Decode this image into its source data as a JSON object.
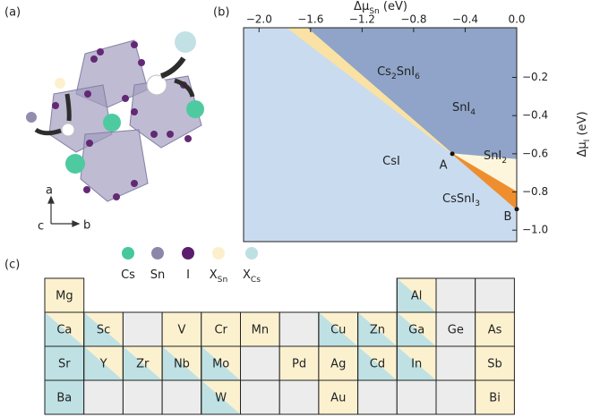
{
  "panel_labels": [
    "(a)",
    "(b)",
    "(c)"
  ],
  "structure": {
    "axes": [
      "a",
      "b",
      "c"
    ],
    "legend": [
      {
        "name": [
          {
            "text": "Cs"
          }
        ],
        "color": "#45c89b"
      },
      {
        "name": [
          {
            "text": "Sn"
          }
        ],
        "color": "#8b87a9"
      },
      {
        "name": [
          {
            "text": "I"
          }
        ],
        "color": "#5b1e6e"
      },
      {
        "name": [
          {
            "text": "X"
          },
          {
            "text": "Sn",
            "sub": true
          }
        ],
        "color": "#fcf0cc"
      },
      {
        "name": [
          {
            "text": "X"
          },
          {
            "text": "Cs",
            "sub": true
          }
        ],
        "color": "#bde0e3"
      }
    ]
  },
  "chart_data": {
    "type": "phase-diagram",
    "xlabel": [
      {
        "text": "Δμ"
      },
      {
        "text": "Sn",
        "sub": true
      },
      {
        "text": " (eV)"
      }
    ],
    "ylabel": [
      {
        "text": "Δμ"
      },
      {
        "text": "I",
        "sub": true
      },
      {
        "text": " (eV)"
      }
    ],
    "xlim": [
      -2.12,
      0
    ],
    "ylim": [
      -1.06,
      0.06
    ],
    "xticks": [
      {
        "value": -2.0,
        "label": "−2.0"
      },
      {
        "value": -1.6,
        "label": "−1.6"
      },
      {
        "value": -1.2,
        "label": "−1.2"
      },
      {
        "value": -0.8,
        "label": "−0.8"
      },
      {
        "value": -0.4,
        "label": "−0.4"
      },
      {
        "value": 0,
        "label": "0.0"
      }
    ],
    "yticks": [
      {
        "value": -0.2,
        "label": "−0.2"
      },
      {
        "value": -0.4,
        "label": "−0.4"
      },
      {
        "value": -0.6,
        "label": "−0.6"
      },
      {
        "value": -0.8,
        "label": "−0.8"
      },
      {
        "value": -1.0,
        "label": "−1.0"
      }
    ],
    "regions": [
      {
        "name": [
          {
            "text": "CsI"
          }
        ],
        "color": "#c9dbef",
        "label_color": "#8aa2c6",
        "x": [
          -2.12,
          0,
          0,
          -2.12
        ],
        "y": [
          0.06,
          0.06,
          -1.06,
          -1.06
        ]
      },
      {
        "name": [
          {
            "text": "SnI"
          },
          {
            "text": "4",
            "sub": true
          }
        ],
        "color": "#8fa4c8",
        "label_color": "#111111",
        "x": [
          -1.63,
          0,
          0,
          -0.5
        ],
        "y": [
          0.06,
          0.06,
          -0.63,
          -0.6
        ]
      },
      {
        "name": [
          {
            "text": "Cs"
          },
          {
            "text": "2",
            "sub": true
          },
          {
            "text": "SnI"
          },
          {
            "text": "6",
            "sub": true
          }
        ],
        "color": "#f9e2a4",
        "label_color": "#fbefc4",
        "x": [
          -1.78,
          -1.63,
          -0.5
        ],
        "y": [
          0.06,
          0.06,
          -0.6
        ]
      },
      {
        "name": [
          {
            "text": "SnI"
          },
          {
            "text": "2",
            "sub": true
          }
        ],
        "color": "#fdf6dc",
        "label_color": "#ffffff",
        "x": [
          -0.5,
          0,
          0
        ],
        "y": [
          -0.6,
          -0.63,
          -0.8
        ]
      },
      {
        "name": [
          {
            "text": "CsSnI"
          },
          {
            "text": "3",
            "sub": true
          }
        ],
        "color": "#ee8e2e",
        "label_color": "#ee8e2e",
        "x": [
          -0.5,
          0,
          0
        ],
        "y": [
          -0.6,
          -0.8,
          -0.89
        ]
      }
    ],
    "points": [
      {
        "label": "A",
        "x": -0.5,
        "y": -0.6
      },
      {
        "label": "B",
        "x": 0,
        "y": -0.89
      }
    ]
  },
  "table": {
    "rows": [
      [
        {
          "symbol": "Mg",
          "colors": [
            "#fcf1cf"
          ]
        },
        null,
        null,
        null,
        null,
        null,
        null,
        null,
        null,
        {
          "symbol": "Al",
          "colors": [
            "#bfe1e4",
            "#fcf1cf"
          ]
        },
        {
          "colors": [
            "#ececec"
          ]
        },
        {
          "colors": [
            "#ececec"
          ]
        }
      ],
      [
        {
          "symbol": "Ca",
          "colors": [
            "#bfe1e4",
            "#fcf1cf"
          ]
        },
        {
          "symbol": "Sc",
          "colors": [
            "#bfe1e4",
            "#fcf1cf"
          ]
        },
        {
          "colors": [
            "#ececec"
          ]
        },
        {
          "symbol": "V",
          "colors": [
            "#fcf1cf"
          ]
        },
        {
          "symbol": "Cr",
          "colors": [
            "#fcf1cf"
          ]
        },
        {
          "symbol": "Mn",
          "colors": [
            "#fcf1cf"
          ]
        },
        {
          "colors": [
            "#ececec"
          ]
        },
        {
          "symbol": "Cu",
          "colors": [
            "#bfe1e4",
            "#fcf1cf"
          ]
        },
        {
          "symbol": "Zn",
          "colors": [
            "#bfe1e4",
            "#fcf1cf"
          ]
        },
        {
          "symbol": "Ga",
          "colors": [
            "#bfe1e4",
            "#fcf1cf"
          ]
        },
        {
          "symbol": "Ge",
          "colors": [
            "#ececec"
          ]
        },
        {
          "symbol": "As",
          "colors": [
            "#fcf1cf"
          ]
        }
      ],
      [
        {
          "symbol": "Sr",
          "colors": [
            "#bfe1e4"
          ]
        },
        {
          "symbol": "Y",
          "colors": [
            "#bfe1e4",
            "#fcf1cf"
          ]
        },
        {
          "symbol": "Zr",
          "colors": [
            "#bfe1e4",
            "#fcf1cf"
          ]
        },
        {
          "symbol": "Nb",
          "colors": [
            "#bfe1e4",
            "#fcf1cf"
          ]
        },
        {
          "symbol": "Mo",
          "colors": [
            "#bfe1e4",
            "#fcf1cf"
          ]
        },
        {
          "colors": [
            "#ececec"
          ]
        },
        {
          "symbol": "Pd",
          "colors": [
            "#fcf1cf"
          ]
        },
        {
          "symbol": "Ag",
          "colors": [
            "#fcf1cf"
          ]
        },
        {
          "symbol": "Cd",
          "colors": [
            "#bfe1e4",
            "#fcf1cf"
          ]
        },
        {
          "symbol": "In",
          "colors": [
            "#bfe1e4",
            "#fcf1cf"
          ]
        },
        {
          "colors": [
            "#ececec"
          ]
        },
        {
          "symbol": "Sb",
          "colors": [
            "#fcf1cf"
          ]
        }
      ],
      [
        {
          "symbol": "Ba",
          "colors": [
            "#bfe1e4"
          ]
        },
        {
          "colors": [
            "#ececec"
          ]
        },
        {
          "colors": [
            "#ececec"
          ]
        },
        {
          "colors": [
            "#ececec"
          ]
        },
        {
          "symbol": "W",
          "colors": [
            "#bfe1e4",
            "#fcf1cf"
          ]
        },
        {
          "colors": [
            "#ececec"
          ]
        },
        {
          "colors": [
            "#ececec"
          ]
        },
        {
          "symbol": "Au",
          "colors": [
            "#fcf1cf"
          ]
        },
        {
          "colors": [
            "#ececec"
          ]
        },
        {
          "colors": [
            "#ececec"
          ]
        },
        {
          "colors": [
            "#ececec"
          ]
        },
        {
          "symbol": "Bi",
          "colors": [
            "#fcf1cf"
          ]
        }
      ]
    ]
  }
}
